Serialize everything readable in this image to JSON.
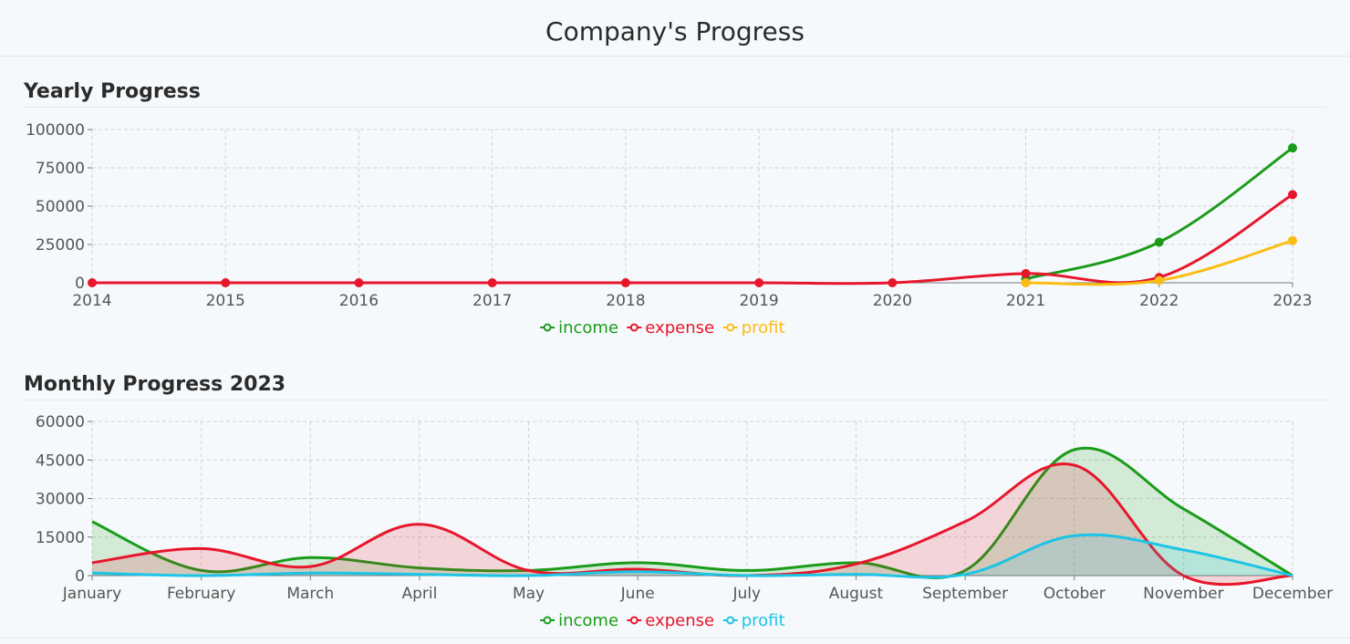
{
  "page": {
    "title": "Company's Progress"
  },
  "chart_data": [
    {
      "type": "line",
      "title": "Yearly Progress",
      "categories": [
        "2014",
        "2015",
        "2016",
        "2017",
        "2018",
        "2019",
        "2020",
        "2021",
        "2022",
        "2023"
      ],
      "ylim": [
        0,
        100000
      ],
      "yticks": [
        0,
        25000,
        50000,
        75000,
        100000
      ],
      "grid": true,
      "legend_position": "bottom",
      "series": [
        {
          "name": "income",
          "color": "#1a9c1a",
          "start": 7,
          "fill": false,
          "markers": true,
          "values": [
            0,
            0,
            0,
            0,
            0,
            0,
            0,
            2500,
            26500,
            88000
          ]
        },
        {
          "name": "expense",
          "color": "#e8162c",
          "start": 0,
          "fill": false,
          "markers": true,
          "values": [
            0,
            0,
            0,
            0,
            0,
            0,
            0,
            6000,
            3500,
            57500
          ]
        },
        {
          "name": "profit",
          "color": "#fbbd14",
          "start": 7,
          "fill": false,
          "markers": true,
          "values": [
            0,
            0,
            0,
            0,
            0,
            0,
            0,
            0,
            1500,
            27500
          ]
        }
      ]
    },
    {
      "type": "area",
      "title": "Monthly Progress 2023",
      "categories": [
        "January",
        "February",
        "March",
        "April",
        "May",
        "June",
        "July",
        "August",
        "September",
        "October",
        "November",
        "December"
      ],
      "ylim": [
        0,
        60000
      ],
      "yticks": [
        0,
        15000,
        30000,
        45000,
        60000
      ],
      "grid": true,
      "legend_position": "bottom",
      "series": [
        {
          "name": "income",
          "color": "#1a9c1a",
          "start": 0,
          "fill": true,
          "markers": false,
          "values": [
            21000,
            2000,
            7000,
            3000,
            2000,
            5000,
            2000,
            5000,
            2000,
            49000,
            26000,
            0
          ]
        },
        {
          "name": "expense",
          "color": "#e8162c",
          "start": 0,
          "fill": true,
          "markers": false,
          "values": [
            5000,
            10500,
            3500,
            20000,
            2000,
            2500,
            0,
            4500,
            21000,
            43000,
            0,
            0
          ]
        },
        {
          "name": "profit",
          "color": "#1cc4e6",
          "start": 0,
          "fill": true,
          "markers": false,
          "values": [
            1000,
            0,
            1000,
            500,
            0,
            1500,
            0,
            500,
            500,
            15500,
            10000,
            0
          ]
        }
      ]
    }
  ]
}
